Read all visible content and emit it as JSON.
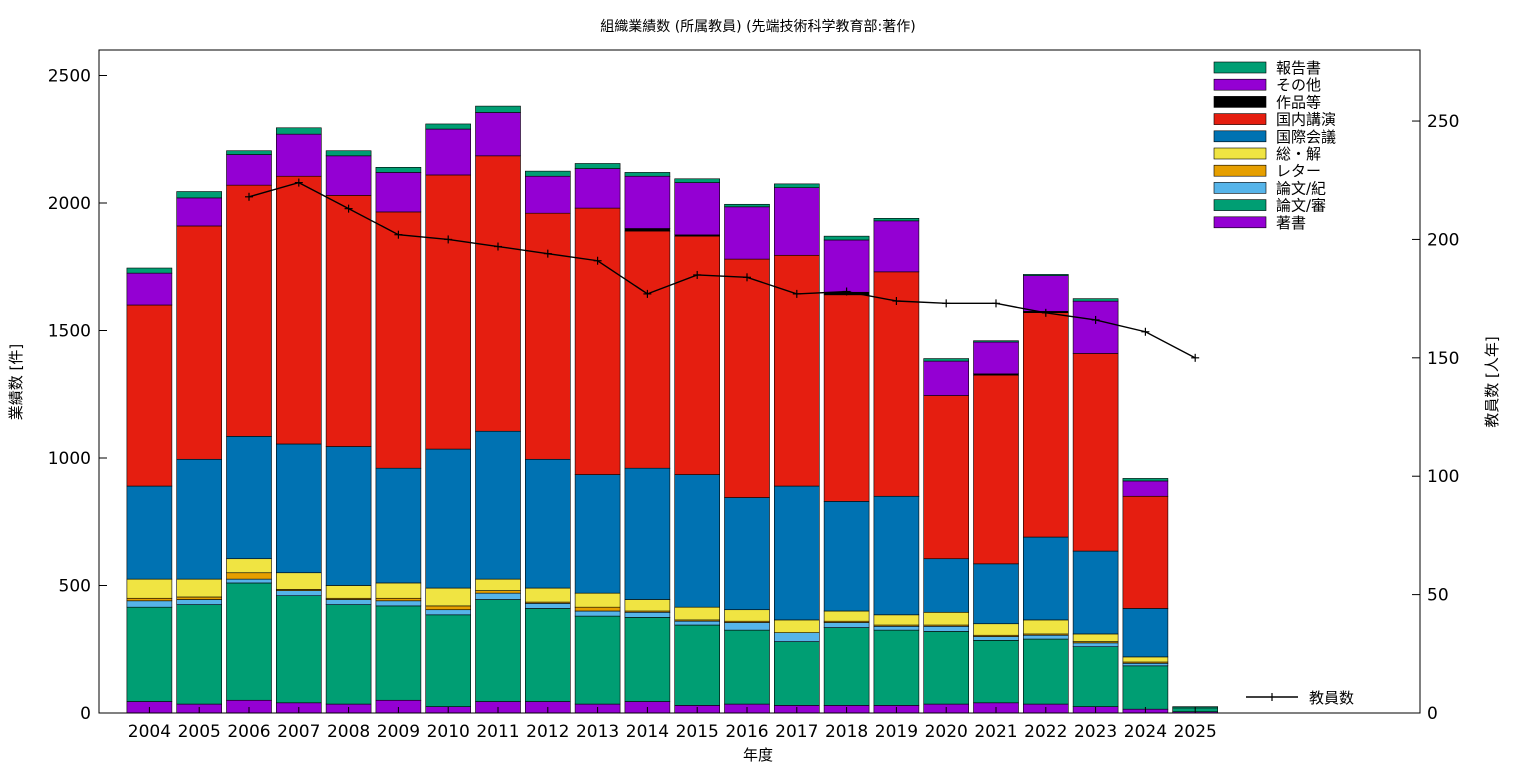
{
  "chart_data": {
    "type": "bar",
    "stacked": true,
    "title": "組織業績数 (所属教員) (先端技術科学教育部:著作)",
    "xlabel": "年度",
    "ylabel": "業績数 [件]",
    "y2label": "教員数 [人年]",
    "ylim": [
      0,
      2600
    ],
    "y2lim": [
      0,
      280
    ],
    "yticks": [
      "0",
      "500",
      "1000",
      "1500",
      "2000",
      "2500"
    ],
    "y2ticks": [
      "0",
      "50",
      "100",
      "150",
      "200",
      "250"
    ],
    "legend_placement": "top-right",
    "categories": [
      "2004",
      "2005",
      "2006",
      "2007",
      "2008",
      "2009",
      "2010",
      "2011",
      "2012",
      "2013",
      "2014",
      "2015",
      "2016",
      "2017",
      "2018",
      "2019",
      "2020",
      "2021",
      "2022",
      "2023",
      "2024",
      "2025"
    ],
    "series": [
      {
        "name": "著書",
        "color": "#9400d3",
        "values": [
          45,
          35,
          50,
          40,
          35,
          50,
          25,
          45,
          45,
          35,
          45,
          30,
          35,
          30,
          30,
          30,
          35,
          40,
          35,
          25,
          15,
          5
        ]
      },
      {
        "name": "論文/審",
        "color": "#009e73",
        "values": [
          370,
          390,
          460,
          420,
          390,
          370,
          360,
          400,
          365,
          345,
          330,
          315,
          290,
          250,
          305,
          295,
          285,
          245,
          255,
          235,
          170,
          15
        ]
      },
      {
        "name": "論文/紀",
        "color": "#56b4e9",
        "values": [
          25,
          20,
          15,
          20,
          20,
          20,
          20,
          25,
          20,
          20,
          20,
          15,
          30,
          35,
          20,
          15,
          20,
          15,
          15,
          15,
          10,
          0
        ]
      },
      {
        "name": "レター",
        "color": "#e69f00",
        "values": [
          10,
          10,
          25,
          5,
          5,
          10,
          15,
          10,
          5,
          15,
          5,
          5,
          5,
          0,
          5,
          5,
          5,
          5,
          5,
          5,
          5,
          0
        ]
      },
      {
        "name": "総・解",
        "color": "#f0e442",
        "values": [
          75,
          70,
          55,
          65,
          50,
          60,
          70,
          45,
          55,
          55,
          45,
          50,
          45,
          50,
          40,
          40,
          50,
          45,
          55,
          30,
          20,
          0
        ]
      },
      {
        "name": "国際会議",
        "color": "#0072b2",
        "values": [
          365,
          470,
          480,
          505,
          545,
          450,
          545,
          580,
          505,
          465,
          515,
          520,
          440,
          525,
          430,
          465,
          210,
          235,
          325,
          325,
          190,
          0
        ]
      },
      {
        "name": "国内講演",
        "color": "#e51e10",
        "values": [
          710,
          915,
          985,
          1050,
          985,
          1005,
          1075,
          1080,
          965,
          1045,
          930,
          935,
          935,
          905,
          810,
          880,
          640,
          740,
          880,
          775,
          440,
          0
        ]
      },
      {
        "name": "作品等",
        "color": "#000000",
        "values": [
          0,
          0,
          0,
          0,
          0,
          0,
          0,
          0,
          0,
          0,
          10,
          5,
          0,
          0,
          10,
          0,
          0,
          5,
          5,
          0,
          0,
          0
        ]
      },
      {
        "name": "その他",
        "color": "#9400d3",
        "values": [
          125,
          110,
          120,
          165,
          155,
          155,
          180,
          170,
          145,
          155,
          205,
          205,
          205,
          265,
          205,
          200,
          135,
          125,
          140,
          205,
          60,
          0
        ]
      },
      {
        "name": "報告書",
        "color": "#009e73",
        "values": [
          20,
          25,
          15,
          25,
          20,
          20,
          20,
          25,
          20,
          20,
          15,
          15,
          10,
          15,
          15,
          10,
          10,
          5,
          5,
          10,
          10,
          5
        ]
      }
    ],
    "line_series": {
      "name": "教員数",
      "axis": "y2",
      "values": [
        null,
        null,
        218,
        224,
        213,
        202,
        200,
        197,
        194,
        191,
        177,
        185,
        184,
        177,
        178,
        174,
        173,
        173,
        169,
        166,
        161,
        150
      ]
    }
  }
}
